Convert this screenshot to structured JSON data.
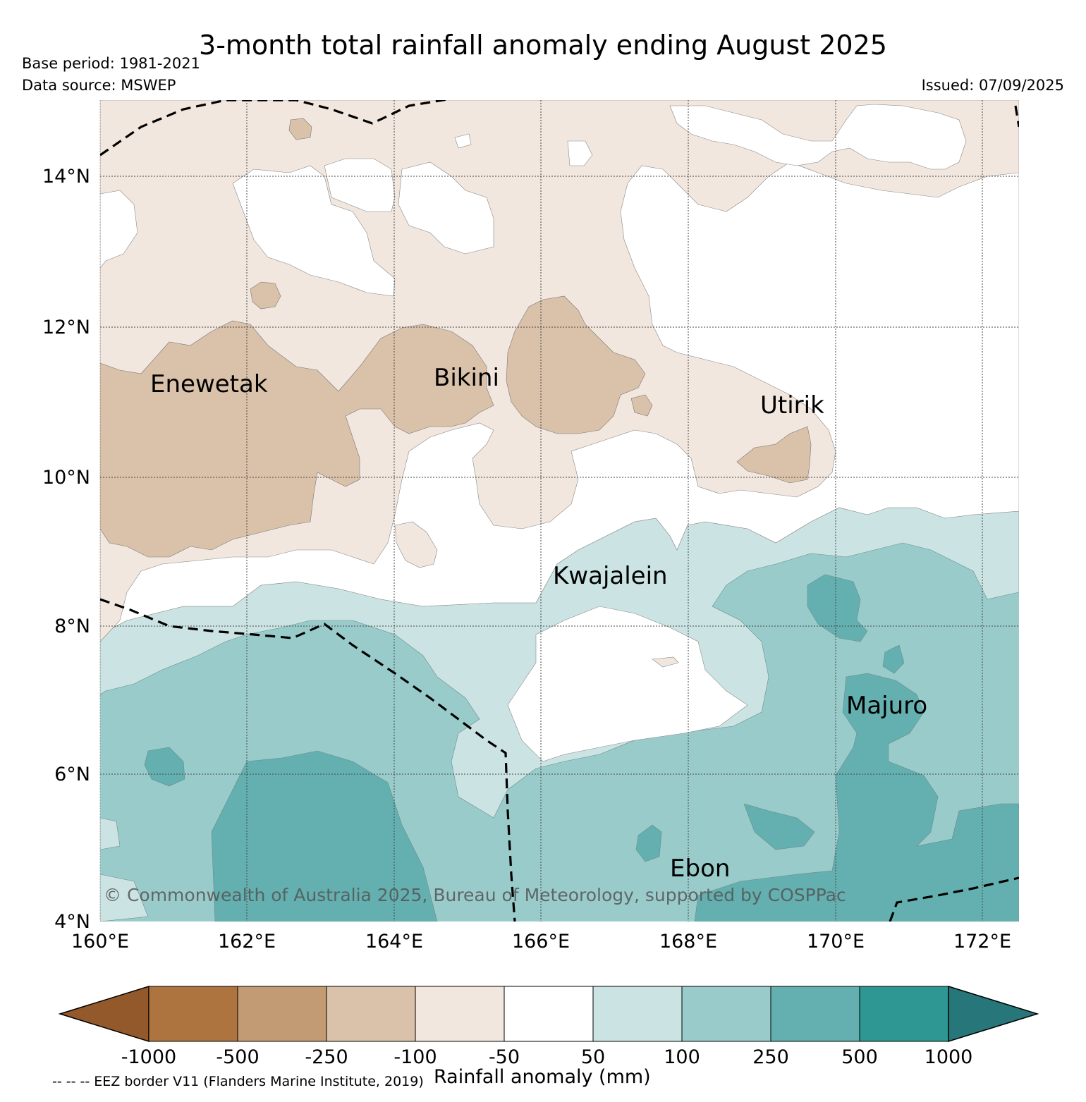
{
  "title": "3-month total rainfall anomaly ending August 2025",
  "base_period": "Base period: 1981-2021",
  "data_source": "Data source: MSWEP",
  "issued": "Issued: 07/09/2025",
  "copyright": "© Commonwealth of Australia 2025, Bureau of Meteorology, supported by COSPPac",
  "map": {
    "lat_labels": [
      "14°N",
      "12°N",
      "10°N",
      "8°N",
      "6°N",
      "4°N"
    ],
    "lon_labels": [
      "160°E",
      "162°E",
      "164°E",
      "166°E",
      "168°E",
      "170°E",
      "172°E"
    ],
    "places": [
      "Enewetak",
      "Bikini",
      "Utirik",
      "Kwajalein",
      "Majuro",
      "Ebon"
    ]
  },
  "colorbar": {
    "title": "Rainfall anomaly (mm)",
    "labels": [
      "-1000",
      "-500",
      "-250",
      "-100",
      "-50",
      "50",
      "100",
      "250",
      "500",
      "1000"
    ],
    "colors": [
      "#93592a",
      "#ad743f",
      "#c29b74",
      "#dac2aa",
      "#f1e7de",
      "#ffffff",
      "#cbe4e3",
      "#9acbcb",
      "#64b0b0",
      "#2e9793",
      "#26767a"
    ]
  },
  "eez_note": "-- -- -- EEZ border V11 (Flanders Marine Institute, 2019)"
}
